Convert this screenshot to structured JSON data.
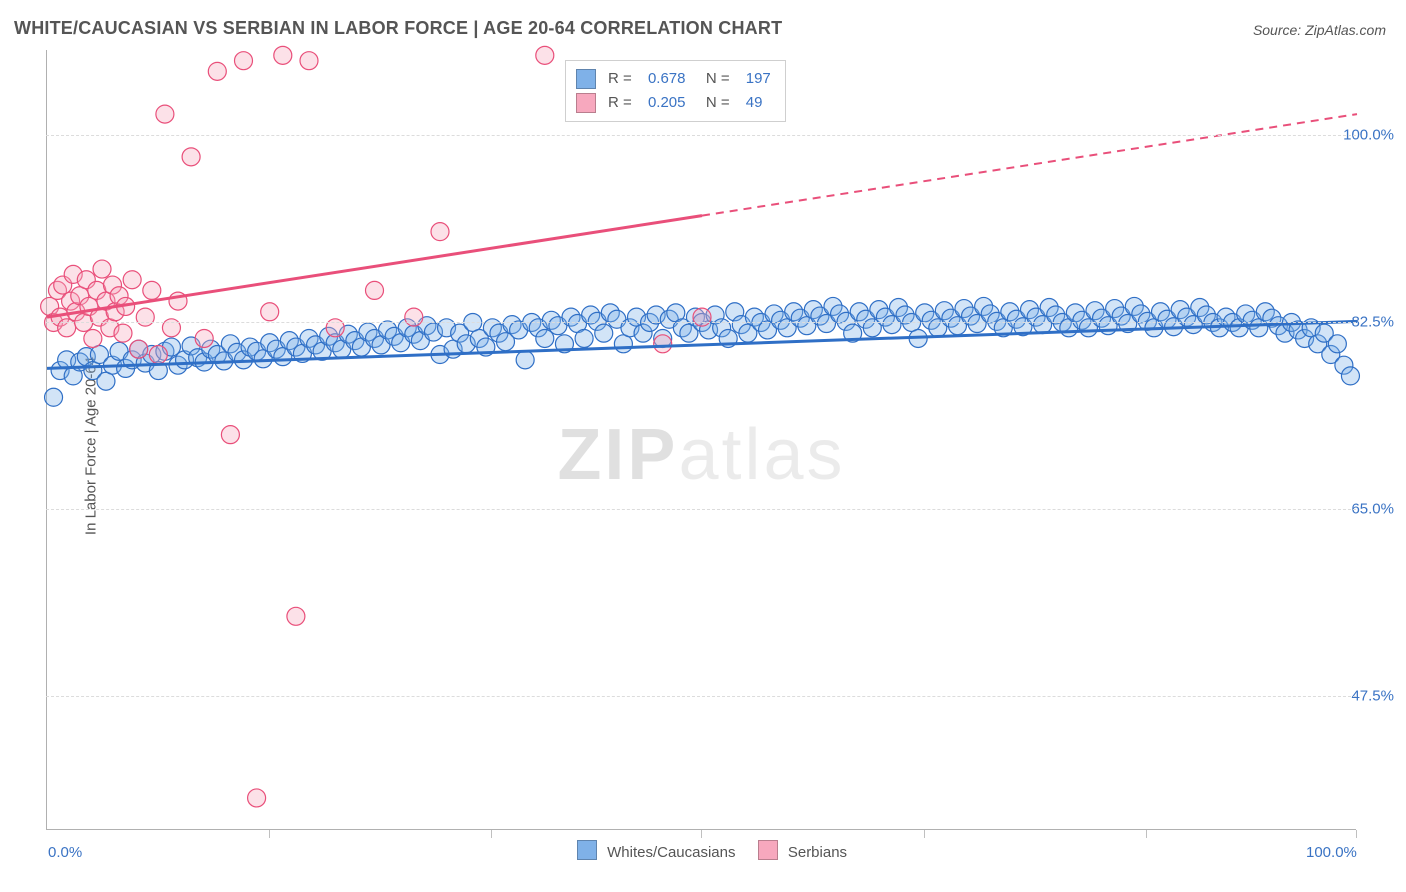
{
  "meta": {
    "title": "WHITE/CAUCASIAN VS SERBIAN IN LABOR FORCE | AGE 20-64 CORRELATION CHART",
    "source": "Source: ZipAtlas.com",
    "ylabel": "In Labor Force | Age 20-64",
    "watermark_a": "ZIP",
    "watermark_b": "atlas"
  },
  "axes": {
    "xlim": [
      0,
      100
    ],
    "ylim": [
      35,
      108
    ],
    "xticks": [
      0,
      100
    ],
    "xtick_labels": [
      "0.0%",
      "100.0%"
    ],
    "xtick_minor": [
      17,
      34,
      50,
      67,
      84,
      100
    ],
    "yticks": [
      47.5,
      65.0,
      82.5,
      100.0
    ],
    "ytick_labels": [
      "47.5%",
      "65.0%",
      "82.5%",
      "100.0%"
    ],
    "grid_color": "#dcdcdc",
    "axis_color": "#b0b0b0",
    "background_color": "#ffffff"
  },
  "marker": {
    "radius": 9,
    "stroke_width": 1.2,
    "fill_opacity": 0.35
  },
  "series": [
    {
      "key": "whites",
      "label": "Whites/Caucasians",
      "color": "#7fb1e8",
      "stroke": "#2f6fc6",
      "line_solid": {
        "x1": 0,
        "y1": 78.2,
        "x2": 100,
        "y2": 82.6
      },
      "R": "0.678",
      "N": "197",
      "points": [
        [
          0.5,
          75.5
        ],
        [
          1.0,
          78.0
        ],
        [
          1.5,
          79.0
        ],
        [
          2.0,
          77.5
        ],
        [
          2.5,
          78.8
        ],
        [
          3.0,
          79.3
        ],
        [
          3.5,
          78.0
        ],
        [
          4.0,
          79.5
        ],
        [
          4.5,
          77.0
        ],
        [
          5.0,
          78.5
        ],
        [
          5.5,
          79.8
        ],
        [
          6.0,
          78.2
        ],
        [
          6.5,
          79.0
        ],
        [
          7.0,
          80.0
        ],
        [
          7.5,
          78.7
        ],
        [
          8.0,
          79.5
        ],
        [
          8.5,
          78.0
        ],
        [
          9.0,
          79.8
        ],
        [
          9.5,
          80.2
        ],
        [
          10.0,
          78.5
        ],
        [
          10.5,
          79.0
        ],
        [
          11.0,
          80.3
        ],
        [
          11.5,
          79.2
        ],
        [
          12.0,
          78.8
        ],
        [
          12.5,
          80.0
        ],
        [
          13.0,
          79.5
        ],
        [
          13.5,
          78.9
        ],
        [
          14.0,
          80.5
        ],
        [
          14.5,
          79.7
        ],
        [
          15.0,
          79.0
        ],
        [
          15.5,
          80.2
        ],
        [
          16.0,
          79.8
        ],
        [
          16.5,
          79.1
        ],
        [
          17.0,
          80.6
        ],
        [
          17.5,
          80.0
        ],
        [
          18.0,
          79.3
        ],
        [
          18.5,
          80.8
        ],
        [
          19.0,
          80.2
        ],
        [
          19.5,
          79.6
        ],
        [
          20.0,
          81.0
        ],
        [
          20.5,
          80.4
        ],
        [
          21.0,
          79.8
        ],
        [
          21.5,
          81.2
        ],
        [
          22.0,
          80.6
        ],
        [
          22.5,
          80.0
        ],
        [
          23.0,
          81.4
        ],
        [
          23.5,
          80.8
        ],
        [
          24.0,
          80.2
        ],
        [
          24.5,
          81.6
        ],
        [
          25.0,
          81.0
        ],
        [
          25.5,
          80.4
        ],
        [
          26.0,
          81.8
        ],
        [
          26.5,
          81.2
        ],
        [
          27.0,
          80.6
        ],
        [
          27.5,
          82.0
        ],
        [
          28.0,
          81.4
        ],
        [
          28.5,
          80.8
        ],
        [
          29.0,
          82.2
        ],
        [
          29.5,
          81.6
        ],
        [
          30.0,
          79.5
        ],
        [
          30.5,
          82.0
        ],
        [
          31.0,
          80.0
        ],
        [
          31.5,
          81.5
        ],
        [
          32.0,
          80.5
        ],
        [
          32.5,
          82.5
        ],
        [
          33.0,
          81.0
        ],
        [
          33.5,
          80.2
        ],
        [
          34.0,
          82.0
        ],
        [
          34.5,
          81.5
        ],
        [
          35.0,
          80.7
        ],
        [
          35.5,
          82.3
        ],
        [
          36.0,
          81.8
        ],
        [
          36.5,
          79.0
        ],
        [
          37.0,
          82.5
        ],
        [
          37.5,
          82.0
        ],
        [
          38.0,
          81.0
        ],
        [
          38.5,
          82.7
        ],
        [
          39.0,
          82.2
        ],
        [
          39.5,
          80.5
        ],
        [
          40.0,
          83.0
        ],
        [
          40.5,
          82.4
        ],
        [
          41.0,
          81.0
        ],
        [
          41.5,
          83.2
        ],
        [
          42.0,
          82.6
        ],
        [
          42.5,
          81.5
        ],
        [
          43.0,
          83.4
        ],
        [
          43.5,
          82.8
        ],
        [
          44.0,
          80.5
        ],
        [
          44.5,
          82.0
        ],
        [
          45.0,
          83.0
        ],
        [
          45.5,
          81.5
        ],
        [
          46.0,
          82.5
        ],
        [
          46.5,
          83.2
        ],
        [
          47.0,
          81.0
        ],
        [
          47.5,
          82.8
        ],
        [
          48.0,
          83.4
        ],
        [
          48.5,
          82.0
        ],
        [
          49.0,
          81.5
        ],
        [
          49.5,
          83.0
        ],
        [
          50.0,
          82.5
        ],
        [
          50.5,
          81.8
        ],
        [
          51.0,
          83.2
        ],
        [
          51.5,
          82.0
        ],
        [
          52.0,
          81.0
        ],
        [
          52.5,
          83.5
        ],
        [
          53.0,
          82.3
        ],
        [
          53.5,
          81.5
        ],
        [
          54.0,
          83.0
        ],
        [
          54.5,
          82.5
        ],
        [
          55.0,
          81.8
        ],
        [
          55.5,
          83.3
        ],
        [
          56.0,
          82.7
        ],
        [
          56.5,
          82.0
        ],
        [
          57.0,
          83.5
        ],
        [
          57.5,
          82.9
        ],
        [
          58.0,
          82.2
        ],
        [
          58.5,
          83.7
        ],
        [
          59.0,
          83.1
        ],
        [
          59.5,
          82.4
        ],
        [
          60.0,
          84.0
        ],
        [
          60.5,
          83.3
        ],
        [
          61.0,
          82.6
        ],
        [
          61.5,
          81.5
        ],
        [
          62.0,
          83.5
        ],
        [
          62.5,
          82.8
        ],
        [
          63.0,
          82.0
        ],
        [
          63.5,
          83.7
        ],
        [
          64.0,
          83.0
        ],
        [
          64.5,
          82.3
        ],
        [
          65.0,
          83.9
        ],
        [
          65.5,
          83.2
        ],
        [
          66.0,
          82.5
        ],
        [
          66.5,
          81.0
        ],
        [
          67.0,
          83.4
        ],
        [
          67.5,
          82.7
        ],
        [
          68.0,
          82.0
        ],
        [
          68.5,
          83.6
        ],
        [
          69.0,
          82.9
        ],
        [
          69.5,
          82.2
        ],
        [
          70.0,
          83.8
        ],
        [
          70.5,
          83.1
        ],
        [
          71.0,
          82.4
        ],
        [
          71.5,
          84.0
        ],
        [
          72.0,
          83.3
        ],
        [
          72.5,
          82.6
        ],
        [
          73.0,
          82.0
        ],
        [
          73.5,
          83.5
        ],
        [
          74.0,
          82.8
        ],
        [
          74.5,
          82.1
        ],
        [
          75.0,
          83.7
        ],
        [
          75.5,
          83.0
        ],
        [
          76.0,
          82.3
        ],
        [
          76.5,
          83.9
        ],
        [
          77.0,
          83.2
        ],
        [
          77.5,
          82.5
        ],
        [
          78.0,
          82.0
        ],
        [
          78.5,
          83.4
        ],
        [
          79.0,
          82.7
        ],
        [
          79.5,
          82.0
        ],
        [
          80.0,
          83.6
        ],
        [
          80.5,
          82.9
        ],
        [
          81.0,
          82.2
        ],
        [
          81.5,
          83.8
        ],
        [
          82.0,
          83.1
        ],
        [
          82.5,
          82.4
        ],
        [
          83.0,
          84.0
        ],
        [
          83.5,
          83.3
        ],
        [
          84.0,
          82.6
        ],
        [
          84.5,
          82.0
        ],
        [
          85.0,
          83.5
        ],
        [
          85.5,
          82.8
        ],
        [
          86.0,
          82.1
        ],
        [
          86.5,
          83.7
        ],
        [
          87.0,
          83.0
        ],
        [
          87.5,
          82.3
        ],
        [
          88.0,
          83.9
        ],
        [
          88.5,
          83.2
        ],
        [
          89.0,
          82.5
        ],
        [
          89.5,
          82.0
        ],
        [
          90.0,
          83.0
        ],
        [
          90.5,
          82.5
        ],
        [
          91.0,
          82.0
        ],
        [
          91.5,
          83.3
        ],
        [
          92.0,
          82.7
        ],
        [
          92.5,
          82.0
        ],
        [
          93.0,
          83.5
        ],
        [
          93.5,
          82.9
        ],
        [
          94.0,
          82.2
        ],
        [
          94.5,
          81.5
        ],
        [
          95.0,
          82.5
        ],
        [
          95.5,
          81.8
        ],
        [
          96.0,
          81.0
        ],
        [
          96.5,
          82.0
        ],
        [
          97.0,
          80.5
        ],
        [
          97.5,
          81.5
        ],
        [
          98.0,
          79.5
        ],
        [
          98.5,
          80.5
        ],
        [
          99.0,
          78.5
        ],
        [
          99.5,
          77.5
        ]
      ]
    },
    {
      "key": "serbians",
      "label": "Serbians",
      "color": "#f7a8be",
      "stroke": "#e94f7a",
      "line_solid": {
        "x1": 0,
        "y1": 83.0,
        "x2": 50,
        "y2": 92.5
      },
      "line_dashed": {
        "x1": 50,
        "y1": 92.5,
        "x2": 100,
        "y2": 102.0
      },
      "R": "0.205",
      "N": "49",
      "points": [
        [
          0.2,
          84.0
        ],
        [
          0.5,
          82.5
        ],
        [
          0.8,
          85.5
        ],
        [
          1.0,
          83.0
        ],
        [
          1.2,
          86.0
        ],
        [
          1.5,
          82.0
        ],
        [
          1.8,
          84.5
        ],
        [
          2.0,
          87.0
        ],
        [
          2.2,
          83.5
        ],
        [
          2.5,
          85.0
        ],
        [
          2.8,
          82.5
        ],
        [
          3.0,
          86.5
        ],
        [
          3.2,
          84.0
        ],
        [
          3.5,
          81.0
        ],
        [
          3.8,
          85.5
        ],
        [
          4.0,
          83.0
        ],
        [
          4.2,
          87.5
        ],
        [
          4.5,
          84.5
        ],
        [
          4.8,
          82.0
        ],
        [
          5.0,
          86.0
        ],
        [
          5.2,
          83.5
        ],
        [
          5.5,
          85.0
        ],
        [
          5.8,
          81.5
        ],
        [
          6.0,
          84.0
        ],
        [
          6.5,
          86.5
        ],
        [
          7.0,
          80.0
        ],
        [
          7.5,
          83.0
        ],
        [
          8.0,
          85.5
        ],
        [
          8.5,
          79.5
        ],
        [
          9.0,
          102.0
        ],
        [
          9.5,
          82.0
        ],
        [
          10.0,
          84.5
        ],
        [
          11.0,
          98.0
        ],
        [
          12.0,
          81.0
        ],
        [
          13.0,
          106.0
        ],
        [
          14.0,
          72.0
        ],
        [
          15.0,
          107.0
        ],
        [
          16.0,
          38.0
        ],
        [
          17.0,
          83.5
        ],
        [
          18.0,
          107.5
        ],
        [
          19.0,
          55.0
        ],
        [
          20.0,
          107.0
        ],
        [
          22.0,
          82.0
        ],
        [
          25.0,
          85.5
        ],
        [
          28.0,
          83.0
        ],
        [
          30.0,
          91.0
        ],
        [
          38.0,
          107.5
        ],
        [
          47.0,
          80.5
        ],
        [
          50.0,
          83.0
        ]
      ]
    }
  ],
  "bottom_legend": [
    {
      "label": "Whites/Caucasians",
      "color": "#7fb1e8"
    },
    {
      "label": "Serbians",
      "color": "#f7a8be"
    }
  ],
  "typography": {
    "title_fontsize": 18,
    "label_fontsize": 15,
    "title_color": "#555555",
    "tick_color": "#3a73c4"
  }
}
